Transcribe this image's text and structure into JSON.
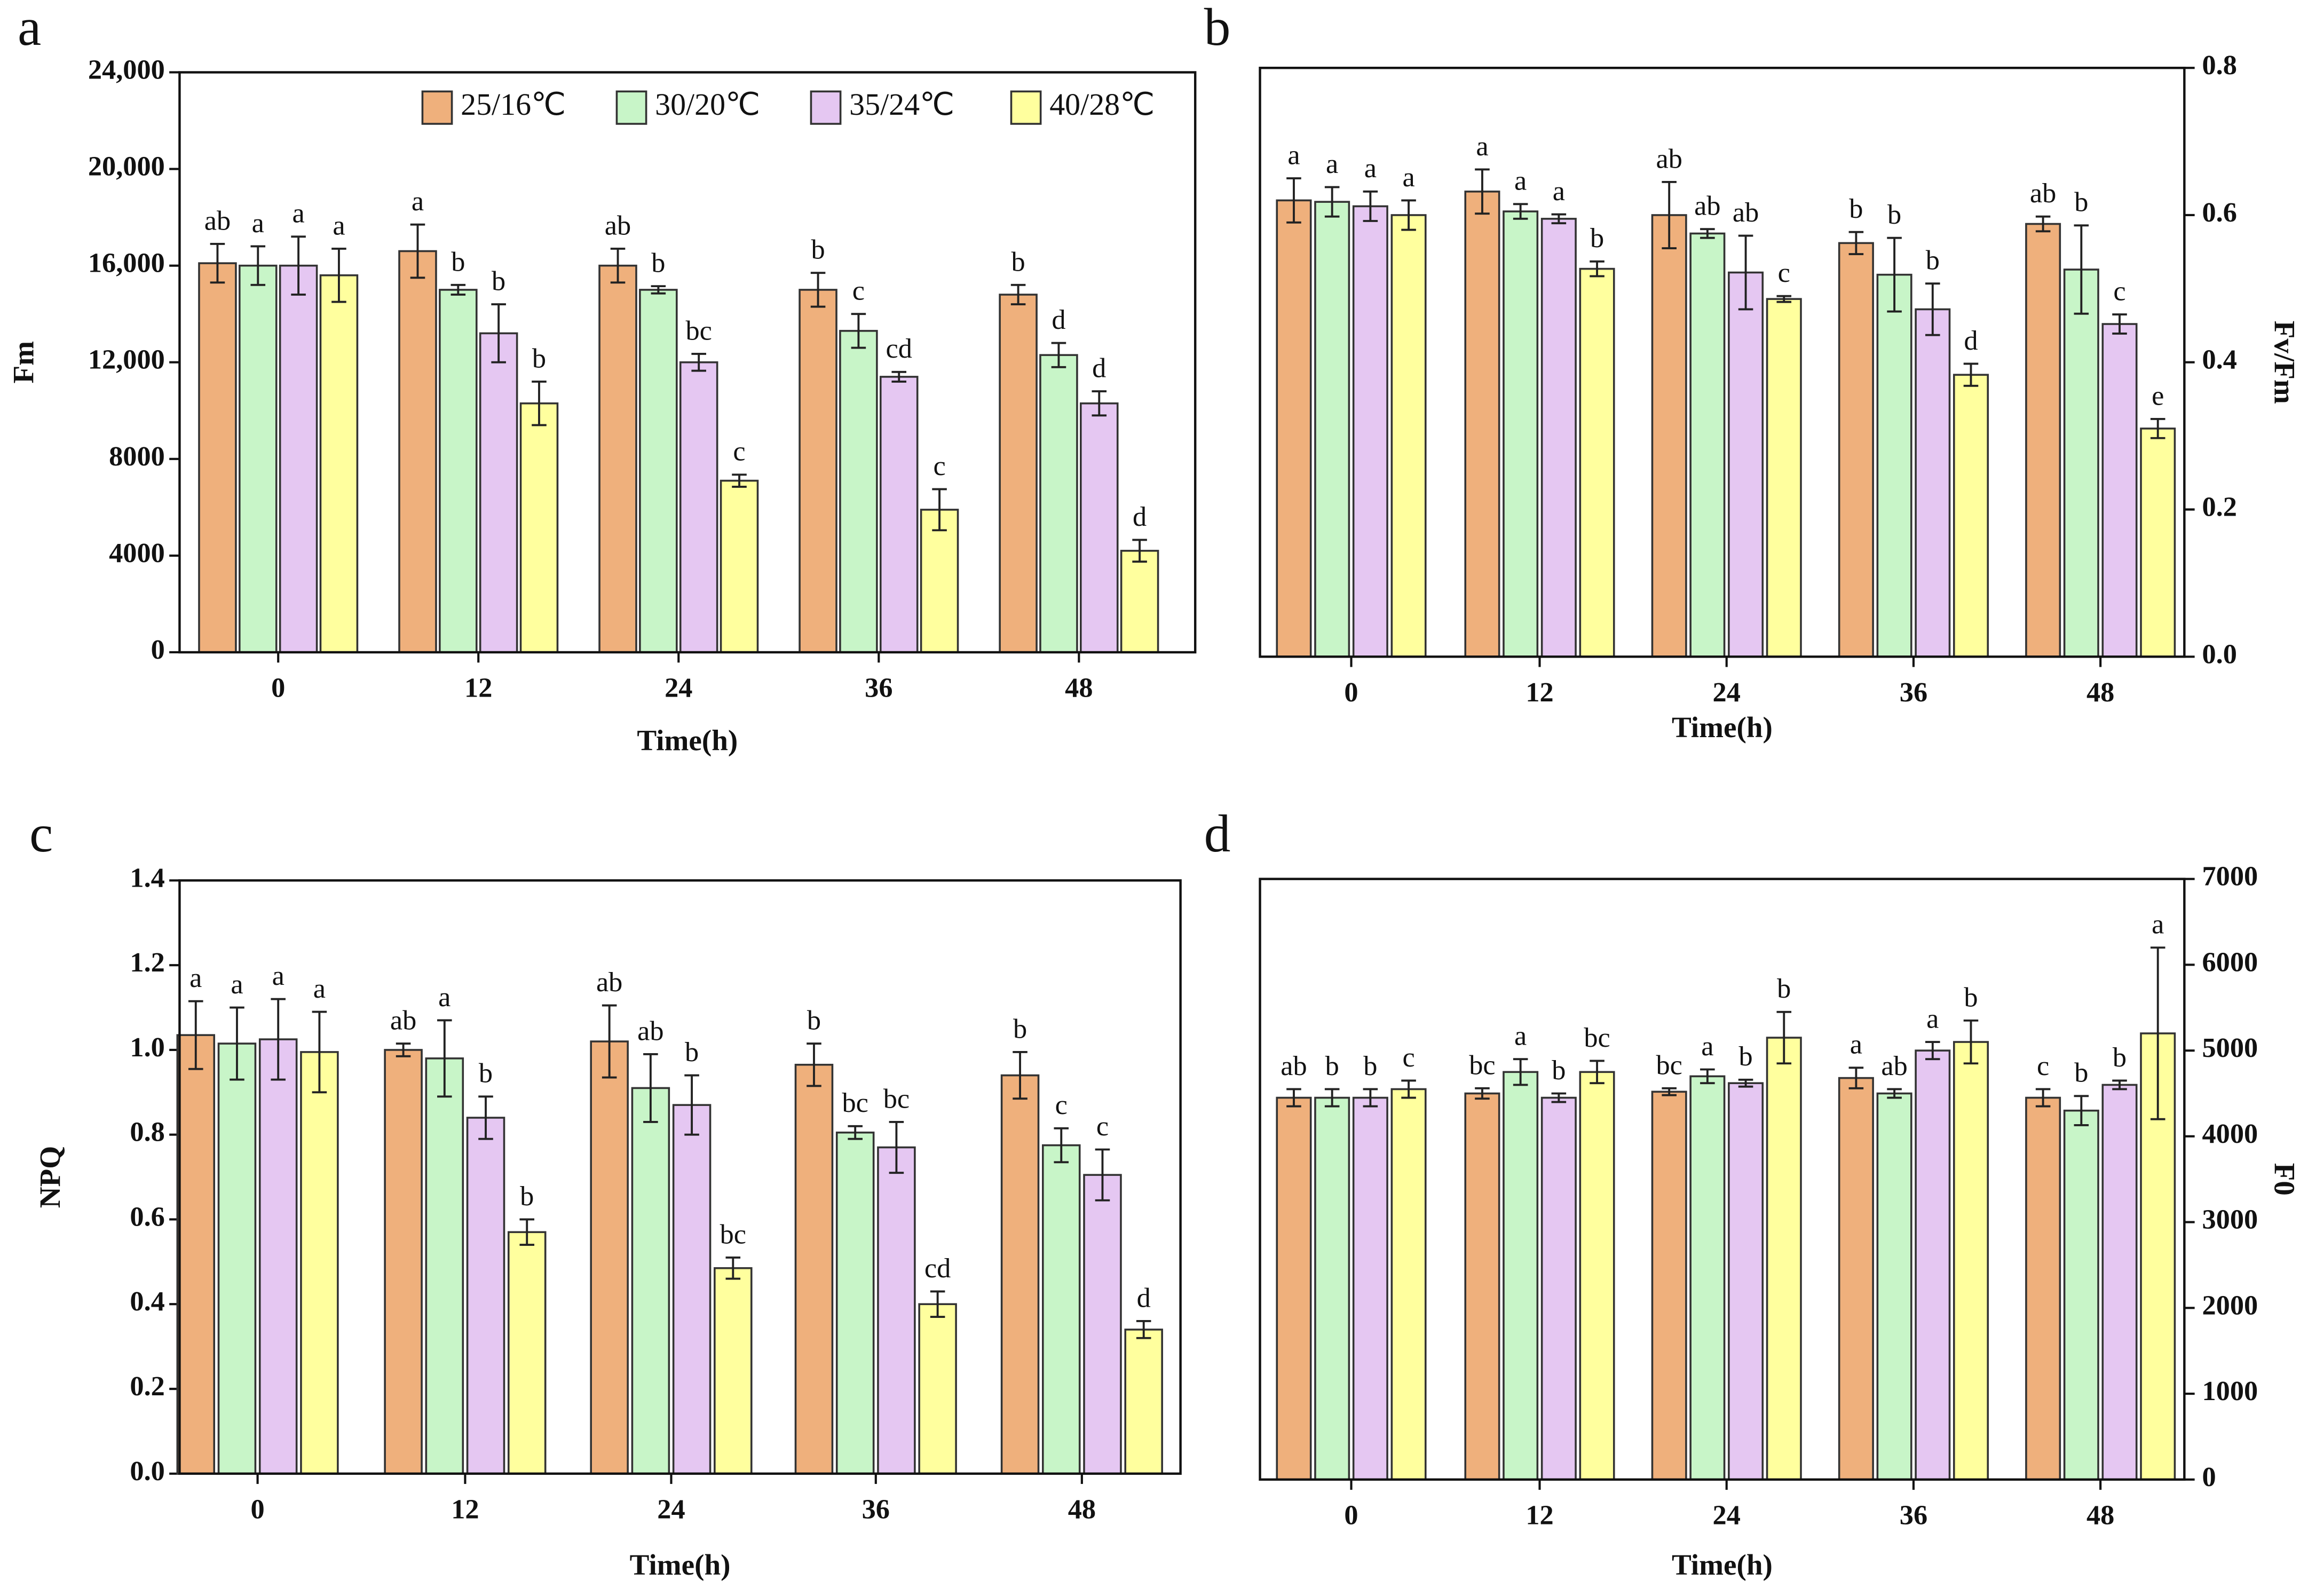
{
  "chart_data": [
    {
      "type": "bar",
      "panel_label": "a",
      "ylabel": "Fm",
      "xlabel": "Time(h)",
      "axis_side": "left",
      "legend": "upper right",
      "categories": [
        "0",
        "12",
        "24",
        "36",
        "48"
      ],
      "ylim": [
        0,
        24000
      ],
      "yticks": [
        0,
        4000,
        8000,
        {
          "value": 12000,
          "label": "12,000"
        },
        {
          "value": 16000,
          "label": "16,000"
        },
        {
          "value": 20000,
          "label": "20,000"
        },
        {
          "value": 24000,
          "label": "24,000"
        }
      ],
      "series": [
        {
          "name": "25/16℃",
          "color": "#EFB07C",
          "values": [
            16100,
            16600,
            16000,
            15000,
            14800
          ],
          "errors": [
            800,
            1100,
            700,
            700,
            400
          ],
          "letters": [
            "ab",
            "a",
            "ab",
            "b",
            "b"
          ]
        },
        {
          "name": "30/20℃",
          "color": "#C8F5C8",
          "values": [
            16000,
            15000,
            15000,
            13300,
            12300
          ],
          "errors": [
            800,
            200,
            150,
            700,
            500
          ],
          "letters": [
            "a",
            "b",
            "b",
            "c",
            "d"
          ]
        },
        {
          "name": "35/24℃",
          "color": "#E5C7F2",
          "values": [
            16000,
            13200,
            12000,
            11400,
            10300
          ],
          "errors": [
            1200,
            1200,
            350,
            200,
            500
          ],
          "letters": [
            "a",
            "b",
            "bc",
            "cd",
            "d"
          ]
        },
        {
          "name": "40/28℃",
          "color": "#FFFF9E",
          "values": [
            15600,
            10300,
            7100,
            5900,
            4200
          ],
          "errors": [
            1100,
            900,
            250,
            850,
            450
          ],
          "letters": [
            "a",
            "b",
            "c",
            "c",
            "d"
          ]
        }
      ]
    },
    {
      "type": "bar",
      "panel_label": "b",
      "ylabel": "Fv/Fm",
      "xlabel": "Time(h)",
      "axis_side": "right",
      "categories": [
        "0",
        "12",
        "24",
        "36",
        "48"
      ],
      "ylim": [
        0,
        0.8
      ],
      "yticks": [
        {
          "value": 0,
          "label": "0.0"
        },
        0.2,
        0.4,
        0.6,
        0.8
      ],
      "series": [
        {
          "color": "#EFB07C",
          "values": [
            0.62,
            0.632,
            0.6,
            0.562,
            0.588
          ],
          "errors": [
            0.03,
            0.03,
            0.045,
            0.015,
            0.01
          ],
          "letters": [
            "a",
            "a",
            "ab",
            "b",
            "ab"
          ]
        },
        {
          "color": "#C8F5C8",
          "values": [
            0.618,
            0.605,
            0.575,
            0.519,
            0.526
          ],
          "errors": [
            0.02,
            0.01,
            0.006,
            0.05,
            0.06
          ],
          "letters": [
            "a",
            "a",
            "ab",
            "b",
            "b"
          ]
        },
        {
          "color": "#E5C7F2",
          "values": [
            0.612,
            0.595,
            0.522,
            0.472,
            0.452
          ],
          "errors": [
            0.02,
            0.006,
            0.05,
            0.035,
            0.013
          ],
          "letters": [
            "a",
            "a",
            "ab",
            "b",
            "c"
          ]
        },
        {
          "color": "#FFFF9E",
          "values": [
            0.6,
            0.527,
            0.486,
            0.383,
            0.31
          ],
          "errors": [
            0.02,
            0.01,
            0.004,
            0.015,
            0.013
          ],
          "letters": [
            "a",
            "b",
            "c",
            "d",
            "e"
          ]
        }
      ]
    },
    {
      "type": "bar",
      "panel_label": "c",
      "ylabel": "NPQ",
      "xlabel": "Time(h)",
      "axis_side": "left",
      "categories": [
        "0",
        "12",
        "24",
        "36",
        "48"
      ],
      "ylim": [
        0,
        1.4
      ],
      "yticks": [
        {
          "value": 0,
          "label": "0.0"
        },
        0.2,
        0.4,
        0.6,
        0.8,
        {
          "value": 1,
          "label": "1.0"
        },
        1.2,
        1.4
      ],
      "series": [
        {
          "color": "#EFB07C",
          "values": [
            1.035,
            1.0,
            1.02,
            0.965,
            0.94
          ],
          "errors": [
            0.08,
            0.015,
            0.085,
            0.05,
            0.055
          ],
          "letters": [
            "a",
            "ab",
            "ab",
            "b",
            "b"
          ]
        },
        {
          "color": "#C8F5C8",
          "values": [
            1.015,
            0.98,
            0.91,
            0.805,
            0.775
          ],
          "errors": [
            0.085,
            0.09,
            0.08,
            0.015,
            0.04
          ],
          "letters": [
            "a",
            "a",
            "ab",
            "bc",
            "c"
          ]
        },
        {
          "color": "#E5C7F2",
          "values": [
            1.025,
            0.84,
            0.87,
            0.77,
            0.705
          ],
          "errors": [
            0.095,
            0.05,
            0.07,
            0.06,
            0.06
          ],
          "letters": [
            "a",
            "b",
            "b",
            "bc",
            "c"
          ]
        },
        {
          "color": "#FFFF9E",
          "values": [
            0.995,
            0.57,
            0.485,
            0.4,
            0.34
          ],
          "errors": [
            0.095,
            0.03,
            0.025,
            0.03,
            0.02
          ],
          "letters": [
            "a",
            "b",
            "bc",
            "cd",
            "d"
          ]
        }
      ]
    },
    {
      "type": "bar",
      "panel_label": "d",
      "ylabel": "F0",
      "xlabel": "Time(h)",
      "axis_side": "right",
      "categories": [
        "0",
        "12",
        "24",
        "36",
        "48"
      ],
      "ylim": [
        0,
        7000
      ],
      "yticks": [
        0,
        1000,
        2000,
        3000,
        4000,
        5000,
        6000,
        7000
      ],
      "series": [
        {
          "color": "#EFB07C",
          "values": [
            4450,
            4500,
            4520,
            4680,
            4450
          ],
          "errors": [
            100,
            60,
            40,
            120,
            100
          ],
          "letters": [
            "ab",
            "bc",
            "bc",
            "a",
            "c"
          ]
        },
        {
          "color": "#C8F5C8",
          "values": [
            4450,
            4750,
            4700,
            4500,
            4300
          ],
          "errors": [
            100,
            150,
            80,
            50,
            170
          ],
          "letters": [
            "b",
            "a",
            "a",
            "ab",
            "b"
          ]
        },
        {
          "color": "#E5C7F2",
          "values": [
            4450,
            4450,
            4620,
            5000,
            4600
          ],
          "errors": [
            100,
            50,
            40,
            100,
            50
          ],
          "letters": [
            "b",
            "b",
            "b",
            "a",
            "b"
          ]
        },
        {
          "color": "#FFFF9E",
          "values": [
            4550,
            4750,
            5150,
            5100,
            5200
          ],
          "errors": [
            100,
            130,
            300,
            250,
            1000
          ],
          "letters": [
            "c",
            "bc",
            "b",
            "b",
            "a"
          ]
        }
      ]
    }
  ]
}
